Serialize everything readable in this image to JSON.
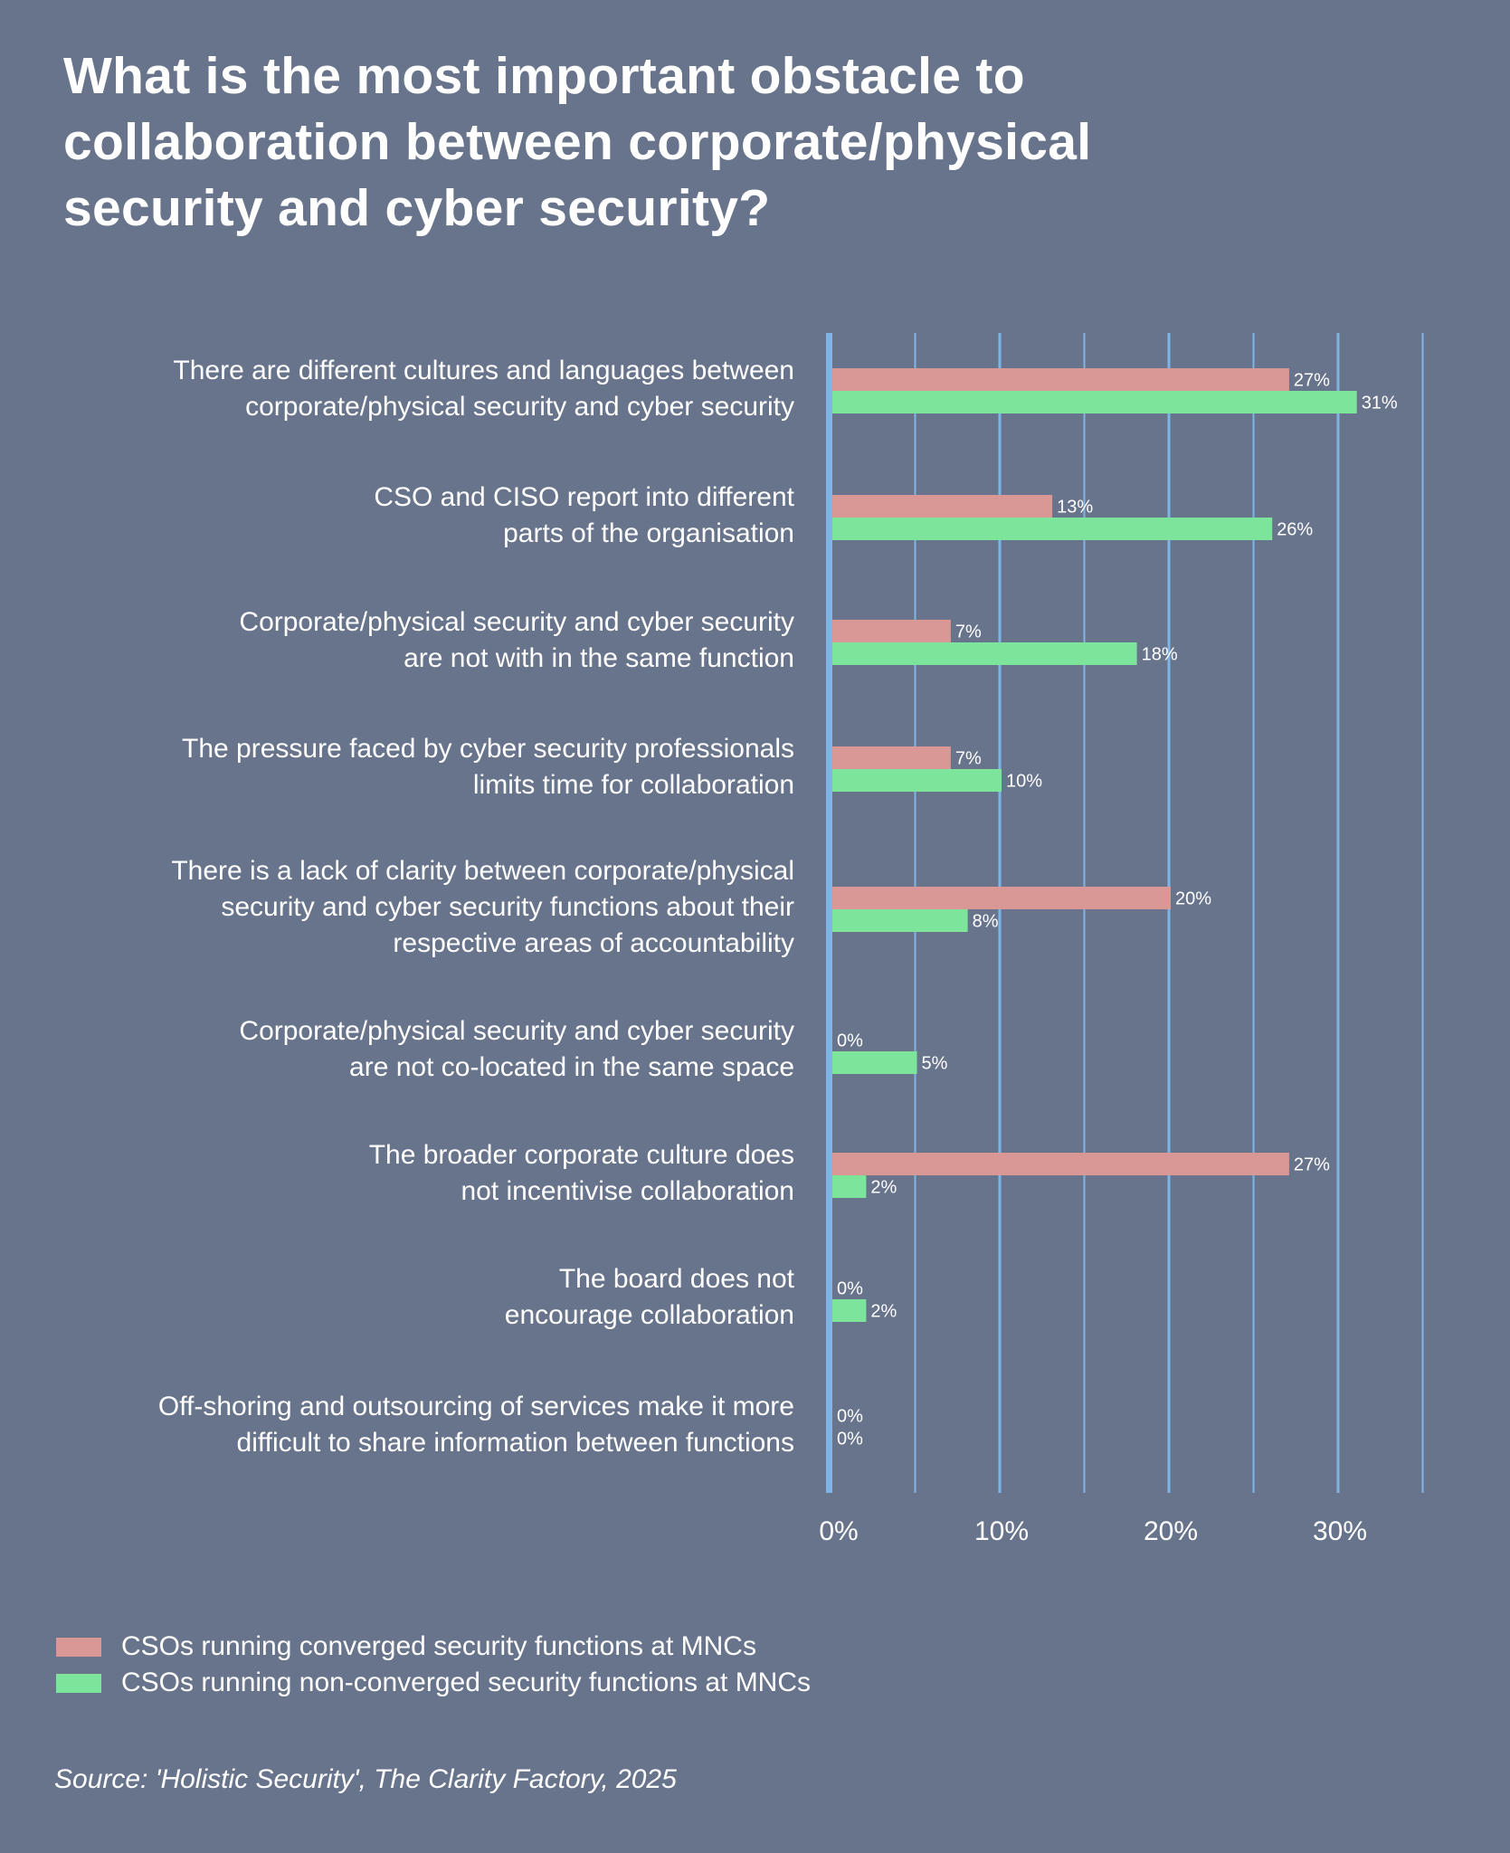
{
  "title_lines": [
    "What is the most important obstacle to",
    "collaboration between corporate/physical",
    "security and cyber security?"
  ],
  "chart_data": {
    "type": "bar",
    "orientation": "horizontal",
    "title": "What is the most important obstacle to collaboration between corporate/physical security and cyber security?",
    "xlabel": "",
    "ylabel": "",
    "xlim": [
      0,
      35
    ],
    "grid": true,
    "x_ticks": [
      "0%",
      "10%",
      "20%",
      "30%"
    ],
    "x_tick_values": [
      0,
      10,
      20,
      30
    ],
    "categories": [
      [
        "There are different cultures and languages between",
        "corporate/physical security and cyber security"
      ],
      [
        "CSO and CISO report into different",
        "parts of the organisation"
      ],
      [
        "Corporate/physical security and cyber security",
        "are not with in the same function"
      ],
      [
        "The pressure faced by cyber security professionals",
        "limits time for collaboration"
      ],
      [
        "There is a lack of clarity between corporate/physical",
        "security and cyber security functions about their",
        "respective areas of accountability"
      ],
      [
        "Corporate/physical security and cyber security",
        "are not co-located in the same space"
      ],
      [
        "The broader corporate culture does",
        "not incentivise collaboration"
      ],
      [
        "The board does not",
        "encourage collaboration"
      ],
      [
        "Off-shoring and outsourcing of services make it more",
        "difficult to share information between functions"
      ]
    ],
    "series": [
      {
        "name": "CSOs running converged security functions at MNCs",
        "color": "#d99795",
        "values": [
          27,
          13,
          7,
          7,
          20,
          0,
          27,
          0,
          0
        ]
      },
      {
        "name": "CSOs running non-converged security functions at MNCs",
        "color": "#7de49c",
        "values": [
          31,
          26,
          18,
          10,
          8,
          5,
          2,
          2,
          0
        ]
      }
    ],
    "legend_position": "bottom-left",
    "value_suffix": "%"
  },
  "colors": {
    "background": "#68748b",
    "axis": "#7fb5e6",
    "gridline": "#7fb5e6",
    "text": "#ffffff"
  },
  "legend": [
    {
      "label": "CSOs running converged security functions at MNCs",
      "color": "#d99795"
    },
    {
      "label": "CSOs running non-converged security functions at MNCs",
      "color": "#7de49c"
    }
  ],
  "source": "Source: 'Holistic Security', The Clarity Factory, 2025"
}
